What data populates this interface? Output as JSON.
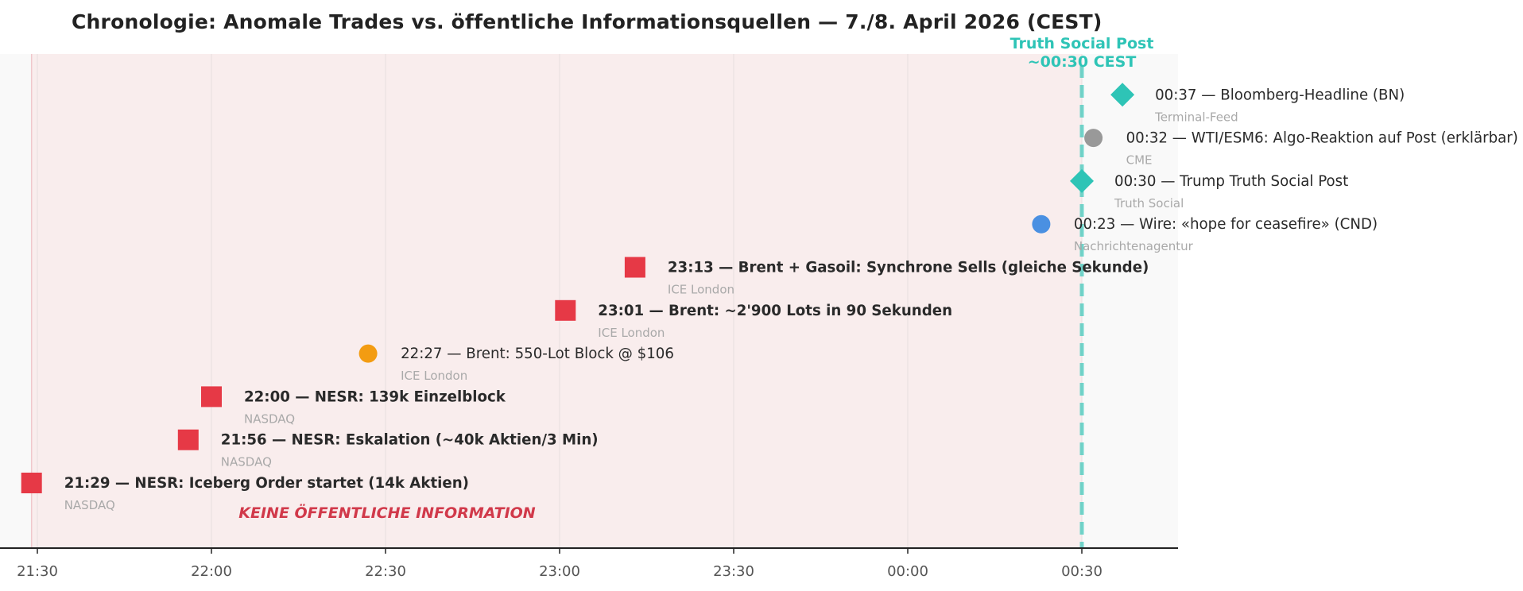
{
  "chart_data": {
    "type": "scatter",
    "title": "Chronologie: Anomale Trades vs. öffentliche Informationsquellen — 7./8. April 2026 (CEST)",
    "x_ticks": [
      "21:30",
      "22:00",
      "22:30",
      "23:00",
      "23:30",
      "00:00",
      "00:30"
    ],
    "xlim": [
      "21:29",
      "00:45"
    ],
    "grid": "vertical",
    "colors": {
      "anomalous": "#e63946",
      "public": "#2ec4b6",
      "neutral": "#999999",
      "wire": "#4a90e2",
      "block": "#f39c12",
      "shade": "#f9eded",
      "plot_bg": "#f9f9f9"
    },
    "shaded_region": {
      "from": "21:29",
      "to": "00:30",
      "label": "KEINE ÖFFENTLICHE INFORMATION"
    },
    "marker_line": {
      "x": "00:30",
      "label_line1": "Truth Social Post",
      "label_line2": "~00:30 CEST"
    },
    "events": [
      {
        "time": "21:29",
        "marker": "square",
        "color": "#e63946",
        "bold": true,
        "label": "21:29 — NESR: Iceberg Order startet (14k Aktien)",
        "source": "NASDAQ"
      },
      {
        "time": "21:56",
        "marker": "square",
        "color": "#e63946",
        "bold": true,
        "label": "21:56 — NESR: Eskalation (~40k Aktien/3 Min)",
        "source": "NASDAQ"
      },
      {
        "time": "22:00",
        "marker": "square",
        "color": "#e63946",
        "bold": true,
        "label": "22:00 — NESR: 139k Einzelblock",
        "source": "NASDAQ"
      },
      {
        "time": "22:27",
        "marker": "circle",
        "color": "#f39c12",
        "bold": false,
        "label": "22:27 — Brent: 550-Lot Block @ $106",
        "source": "ICE London"
      },
      {
        "time": "23:01",
        "marker": "square",
        "color": "#e63946",
        "bold": true,
        "label": "23:01 — Brent: ~2'900 Lots in 90 Sekunden",
        "source": "ICE London"
      },
      {
        "time": "23:13",
        "marker": "square",
        "color": "#e63946",
        "bold": true,
        "label": "23:13 — Brent + Gasoil: Synchrone Sells (gleiche Sekunde)",
        "source": "ICE London"
      },
      {
        "time": "00:23",
        "marker": "circle",
        "color": "#4a90e2",
        "bold": false,
        "label": "00:23 — Wire: «hope for ceasefire» (CND)",
        "source": "Nachrichtenagentur"
      },
      {
        "time": "00:30",
        "marker": "diamond",
        "color": "#2ec4b6",
        "bold": false,
        "label": "00:30 — Trump Truth Social Post",
        "source": "Truth Social"
      },
      {
        "time": "00:32",
        "marker": "circle",
        "color": "#999999",
        "bold": false,
        "label": "00:32 — WTI/ESM6: Algo-Reaktion auf Post (erklärbar)",
        "source": "CME"
      },
      {
        "time": "00:37",
        "marker": "diamond",
        "color": "#2ec4b6",
        "bold": false,
        "label": "00:37 — Bloomberg-Headline (BN)",
        "source": "Terminal-Feed"
      }
    ]
  }
}
